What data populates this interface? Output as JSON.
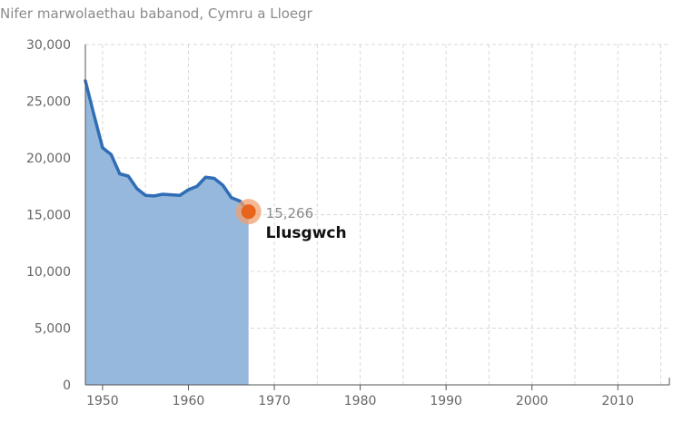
{
  "chart_data": {
    "type": "area",
    "title": "Nifer marwolaethau babanod, Cymru a Lloegr",
    "xlabel": "",
    "ylabel": "",
    "xlim": [
      1948,
      2016
    ],
    "ylim": [
      0,
      30000
    ],
    "x_ticks": [
      1950,
      1960,
      1970,
      1980,
      1990,
      2000,
      2010
    ],
    "x_tick_labels": [
      "1950",
      "1960",
      "1970",
      "1980",
      "1990",
      "2000",
      "2010"
    ],
    "y_ticks": [
      0,
      5000,
      10000,
      15000,
      20000,
      25000,
      30000
    ],
    "y_tick_labels": [
      "0",
      "5,000",
      "10,000",
      "15,000",
      "20,000",
      "25,000",
      "30,000"
    ],
    "grid": true,
    "colors": {
      "line": "#2f6db5",
      "area": "#96b8dc",
      "marker": "#e8641c",
      "marker_halo": "#f0a070"
    },
    "series": [
      {
        "x": [
          1948,
          1949,
          1950,
          1951,
          1952,
          1953,
          1954,
          1955,
          1956,
          1957,
          1958,
          1959,
          1960,
          1961,
          1962,
          1963,
          1964,
          1965,
          1966,
          1967
        ],
        "values": [
          26800,
          23800,
          20900,
          20300,
          18600,
          18400,
          17300,
          16700,
          16650,
          16800,
          16750,
          16700,
          17200,
          17500,
          18300,
          18200,
          17600,
          16500,
          16200,
          15266
        ]
      }
    ],
    "annotation": {
      "x": 1967,
      "value": 15266,
      "value_label": "15,266",
      "text": "Llusgwch"
    }
  }
}
